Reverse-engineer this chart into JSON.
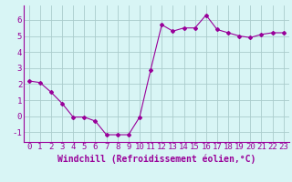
{
  "x": [
    0,
    1,
    2,
    3,
    4,
    5,
    6,
    7,
    8,
    9,
    10,
    11,
    12,
    13,
    14,
    15,
    16,
    17,
    18,
    19,
    20,
    21,
    22,
    23
  ],
  "y": [
    2.2,
    2.1,
    1.5,
    0.8,
    -0.05,
    -0.05,
    -0.3,
    -1.15,
    -1.15,
    -1.15,
    -0.05,
    2.9,
    5.7,
    5.3,
    5.5,
    5.5,
    6.3,
    5.4,
    5.2,
    5.0,
    4.9,
    5.1,
    5.2,
    5.2
  ],
  "line_color": "#990099",
  "marker": "D",
  "marker_size": 2,
  "bg_color": "#d8f5f5",
  "grid_color": "#aacccc",
  "xlabel": "Windchill (Refroidissement éolien,°C)",
  "xlabel_color": "#990099",
  "xlabel_fontsize": 7,
  "tick_color": "#990099",
  "tick_fontsize": 6.5,
  "ytick_values": [
    -1,
    0,
    1,
    2,
    3,
    4,
    5,
    6
  ],
  "xtick_values": [
    0,
    1,
    2,
    3,
    4,
    5,
    6,
    7,
    8,
    9,
    10,
    11,
    12,
    13,
    14,
    15,
    16,
    17,
    18,
    19,
    20,
    21,
    22,
    23
  ],
  "ylim": [
    -1.6,
    6.9
  ],
  "xlim": [
    -0.5,
    23.5
  ]
}
